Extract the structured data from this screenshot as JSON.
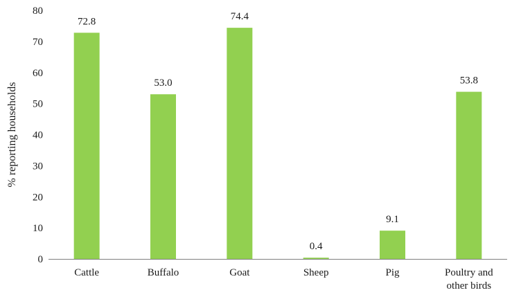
{
  "chart_data": {
    "type": "bar",
    "title": "",
    "xlabel": "",
    "ylabel": "% reporting households",
    "ylim": [
      0,
      80
    ],
    "yticks": [
      0,
      10,
      20,
      30,
      40,
      50,
      60,
      70,
      80
    ],
    "grid": false,
    "legend": "none",
    "categories": [
      [
        "Cattle"
      ],
      [
        "Buffalo"
      ],
      [
        "Goat"
      ],
      [
        "Sheep"
      ],
      [
        "Pig"
      ],
      [
        "Poultry and",
        "other birds"
      ]
    ],
    "values": [
      72.8,
      53.0,
      74.4,
      0.4,
      9.1,
      53.8
    ],
    "data_labels": [
      "72.8",
      "53.0",
      "74.4",
      "0.4",
      "9.1",
      "53.8"
    ],
    "colors": {
      "bar": "#92d050",
      "axis": "#7f7f7f",
      "text": "#1a1a1a"
    }
  }
}
